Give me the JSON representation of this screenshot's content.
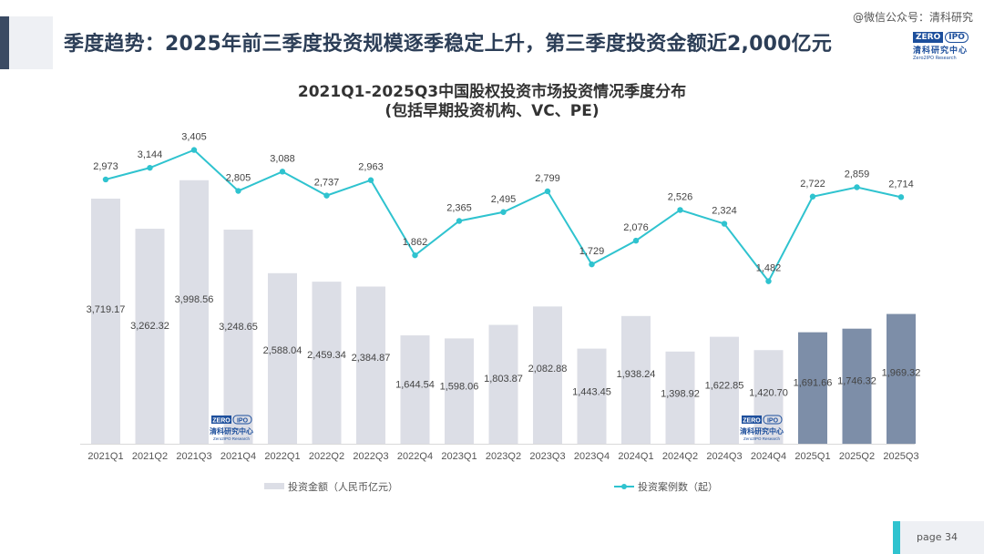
{
  "slide_title": "季度趋势：2025年前三季度投资规模逐季稳定上升，第三季度投资金额近2,000亿元",
  "watermark": "@微信公众号：清科研究",
  "logo": {
    "zero": "ZERO",
    "ipo": "IPO",
    "cn": "清科研究中心",
    "en": "Zero2IPO Research"
  },
  "page_label": "page  34",
  "colors": {
    "bar": "#dcdee6",
    "bar_highlight": "#7d8ea8",
    "line": "#2fc3cf",
    "title": "#2c3e57"
  },
  "chart_data": {
    "type": "bar",
    "title_line1": "2021Q1-2025Q3中国股权投资市场投资情况季度分布",
    "title_line2": "(包括早期投资机构、VC、PE)",
    "categories": [
      "2021Q1",
      "2021Q2",
      "2021Q3",
      "2021Q4",
      "2022Q1",
      "2022Q2",
      "2022Q3",
      "2022Q4",
      "2023Q1",
      "2023Q2",
      "2023Q3",
      "2023Q4",
      "2024Q1",
      "2024Q2",
      "2024Q3",
      "2024Q4",
      "2025Q1",
      "2025Q2",
      "2025Q3"
    ],
    "series": [
      {
        "name": "投资金额（人民币亿元）",
        "type": "bar",
        "values": [
          3719.17,
          3262.32,
          3998.56,
          3248.65,
          2588.04,
          2459.34,
          2384.87,
          1644.54,
          1598.06,
          1803.87,
          2082.88,
          1443.45,
          1938.24,
          1398.92,
          1622.85,
          1420.7,
          1691.66,
          1746.32,
          1969.32
        ],
        "labels": [
          "3,719.17",
          "3,262.32",
          "3,998.56",
          "3,248.65",
          "2,588.04",
          "2,459.34",
          "2,384.87",
          "1,644.54",
          "1,598.06",
          "1,803.87",
          "2,082.88",
          "1,443.45",
          "1,938.24",
          "1,398.92",
          "1,622.85",
          "1,420.70",
          "1,691.66",
          "1,746.32",
          "1,969.32"
        ],
        "highlight_from_index": 16
      },
      {
        "name": "投资案例数（起）",
        "type": "line",
        "values": [
          2973,
          3144,
          3405,
          2805,
          3088,
          2737,
          2963,
          1862,
          2365,
          2495,
          2799,
          1729,
          2076,
          2526,
          2324,
          1482,
          2722,
          2859,
          2714
        ],
        "labels": [
          "2,973",
          "3,144",
          "3,405",
          "2,805",
          "3,088",
          "2,737",
          "2,963",
          "1,862",
          "2,365",
          "2,495",
          "2,799",
          "1,729",
          "2,076",
          "2,526",
          "2,324",
          "1,482",
          "2,722",
          "2,859",
          "2,714"
        ]
      }
    ],
    "legend_position": "bottom",
    "bar_ylim": [
      0,
      4300
    ],
    "line_ylim": [
      -900,
      3600
    ],
    "watermark_logo_positions": [
      "2021Q3-2021Q4",
      "2024Q4"
    ]
  }
}
